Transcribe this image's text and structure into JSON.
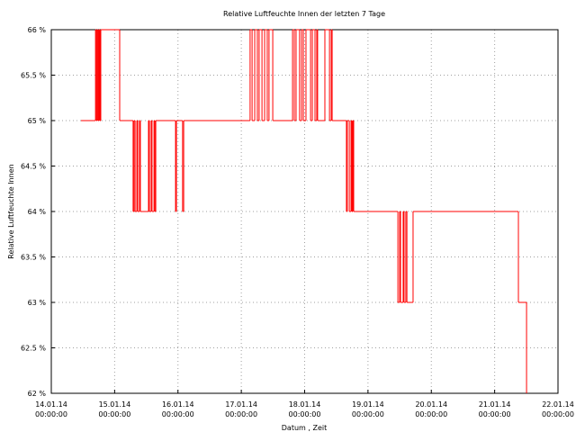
{
  "chart_data": {
    "type": "line",
    "title": "Relative Luftfeuchte Innen der letzten 7 Tage",
    "x_label": "Datum , Zeit",
    "y_label": "Relative Luftfeuchte Innen",
    "steps": true,
    "grid": true,
    "series": [
      {
        "name": "Relative Luftfeuchte Innen",
        "color": "#ff0000",
        "x": [
          "2014-01-14T11:15",
          "2014-01-14T16:45",
          "2014-01-14T17:05",
          "2014-01-14T17:25",
          "2014-01-14T17:45",
          "2014-01-14T18:05",
          "2014-01-14T18:25",
          "2014-01-14T18:45",
          "2014-01-15T01:55",
          "2014-01-15T07:00",
          "2014-01-15T07:20",
          "2014-01-15T07:45",
          "2014-01-15T08:25",
          "2014-01-15T08:45",
          "2014-01-15T09:25",
          "2014-01-15T09:45",
          "2014-01-15T12:50",
          "2014-01-15T13:10",
          "2014-01-15T13:50",
          "2014-01-15T14:10",
          "2014-01-15T14:55",
          "2014-01-15T15:15",
          "2014-01-15T15:35",
          "2014-01-15T23:05",
          "2014-01-15T23:25",
          "2014-01-16T01:45",
          "2014-01-16T02:10",
          "2014-01-17T03:20",
          "2014-01-17T04:05",
          "2014-01-17T05:05",
          "2014-01-17T06:05",
          "2014-01-17T06:45",
          "2014-01-17T07:50",
          "2014-01-17T08:50",
          "2014-01-17T09:50",
          "2014-01-17T10:30",
          "2014-01-17T11:55",
          "2014-01-17T19:25",
          "2014-01-17T20:05",
          "2014-01-17T20:45",
          "2014-01-17T22:05",
          "2014-01-17T22:50",
          "2014-01-17T23:30",
          "2014-01-18T00:30",
          "2014-01-18T02:15",
          "2014-01-18T02:55",
          "2014-01-18T03:55",
          "2014-01-18T04:35",
          "2014-01-18T04:55",
          "2014-01-18T07:40",
          "2014-01-18T09:25",
          "2014-01-18T10:05",
          "2014-01-18T10:25",
          "2014-01-18T15:50",
          "2014-01-18T16:10",
          "2014-01-18T16:55",
          "2014-01-18T17:35",
          "2014-01-18T17:55",
          "2014-01-18T18:15",
          "2014-01-18T18:35",
          "2014-01-19T11:20",
          "2014-01-19T12:00",
          "2014-01-19T12:20",
          "2014-01-19T13:20",
          "2014-01-19T13:40",
          "2014-01-19T14:20",
          "2014-01-19T14:45",
          "2014-01-19T17:05",
          "2014-01-21T09:00",
          "2014-01-21T12:05"
        ],
        "values": [
          65,
          66,
          65,
          66,
          65,
          66,
          65,
          66,
          65,
          64,
          65,
          64,
          65,
          64,
          65,
          64,
          65,
          64,
          65,
          64,
          65,
          64,
          65,
          64,
          65,
          64,
          65,
          66,
          65,
          66,
          65,
          66,
          65,
          66,
          65,
          66,
          65,
          66,
          65,
          66,
          65,
          66,
          65,
          66,
          65,
          66,
          65,
          66,
          65,
          66,
          65,
          66,
          65,
          64,
          65,
          64,
          65,
          64,
          65,
          64,
          63,
          64,
          63,
          64,
          63,
          64,
          63,
          64,
          63,
          62
        ]
      }
    ],
    "xlim": [
      "2014-01-14T00:00",
      "2014-01-22T00:00"
    ],
    "xticks": [
      {
        "value": "2014-01-14T00:00",
        "label": [
          "14.01.14",
          "00:00:00"
        ]
      },
      {
        "value": "2014-01-15T00:00",
        "label": [
          "15.01.14",
          "00:00:00"
        ]
      },
      {
        "value": "2014-01-16T00:00",
        "label": [
          "16.01.14",
          "00:00:00"
        ]
      },
      {
        "value": "2014-01-17T00:00",
        "label": [
          "17.01.14",
          "00:00:00"
        ]
      },
      {
        "value": "2014-01-18T00:00",
        "label": [
          "18.01.14",
          "00:00:00"
        ]
      },
      {
        "value": "2014-01-19T00:00",
        "label": [
          "19.01.14",
          "00:00:00"
        ]
      },
      {
        "value": "2014-01-20T00:00",
        "label": [
          "20.01.14",
          "00:00:00"
        ]
      },
      {
        "value": "2014-01-21T00:00",
        "label": [
          "21.01.14",
          "00:00:00"
        ]
      },
      {
        "value": "2014-01-22T00:00",
        "label": [
          "22.01.14",
          "00:00:00"
        ]
      }
    ],
    "ylim": [
      62,
      66
    ],
    "yticks": [
      {
        "value": 62,
        "label": "62 %"
      },
      {
        "value": 62.5,
        "label": "62.5 %"
      },
      {
        "value": 63,
        "label": "63 %"
      },
      {
        "value": 63.5,
        "label": "63.5 %"
      },
      {
        "value": 64,
        "label": "64 %"
      },
      {
        "value": 64.5,
        "label": "64.5 %"
      },
      {
        "value": 65,
        "label": "65 %"
      },
      {
        "value": 65.5,
        "label": "65.5 %"
      },
      {
        "value": 66,
        "label": "66 %"
      }
    ]
  }
}
